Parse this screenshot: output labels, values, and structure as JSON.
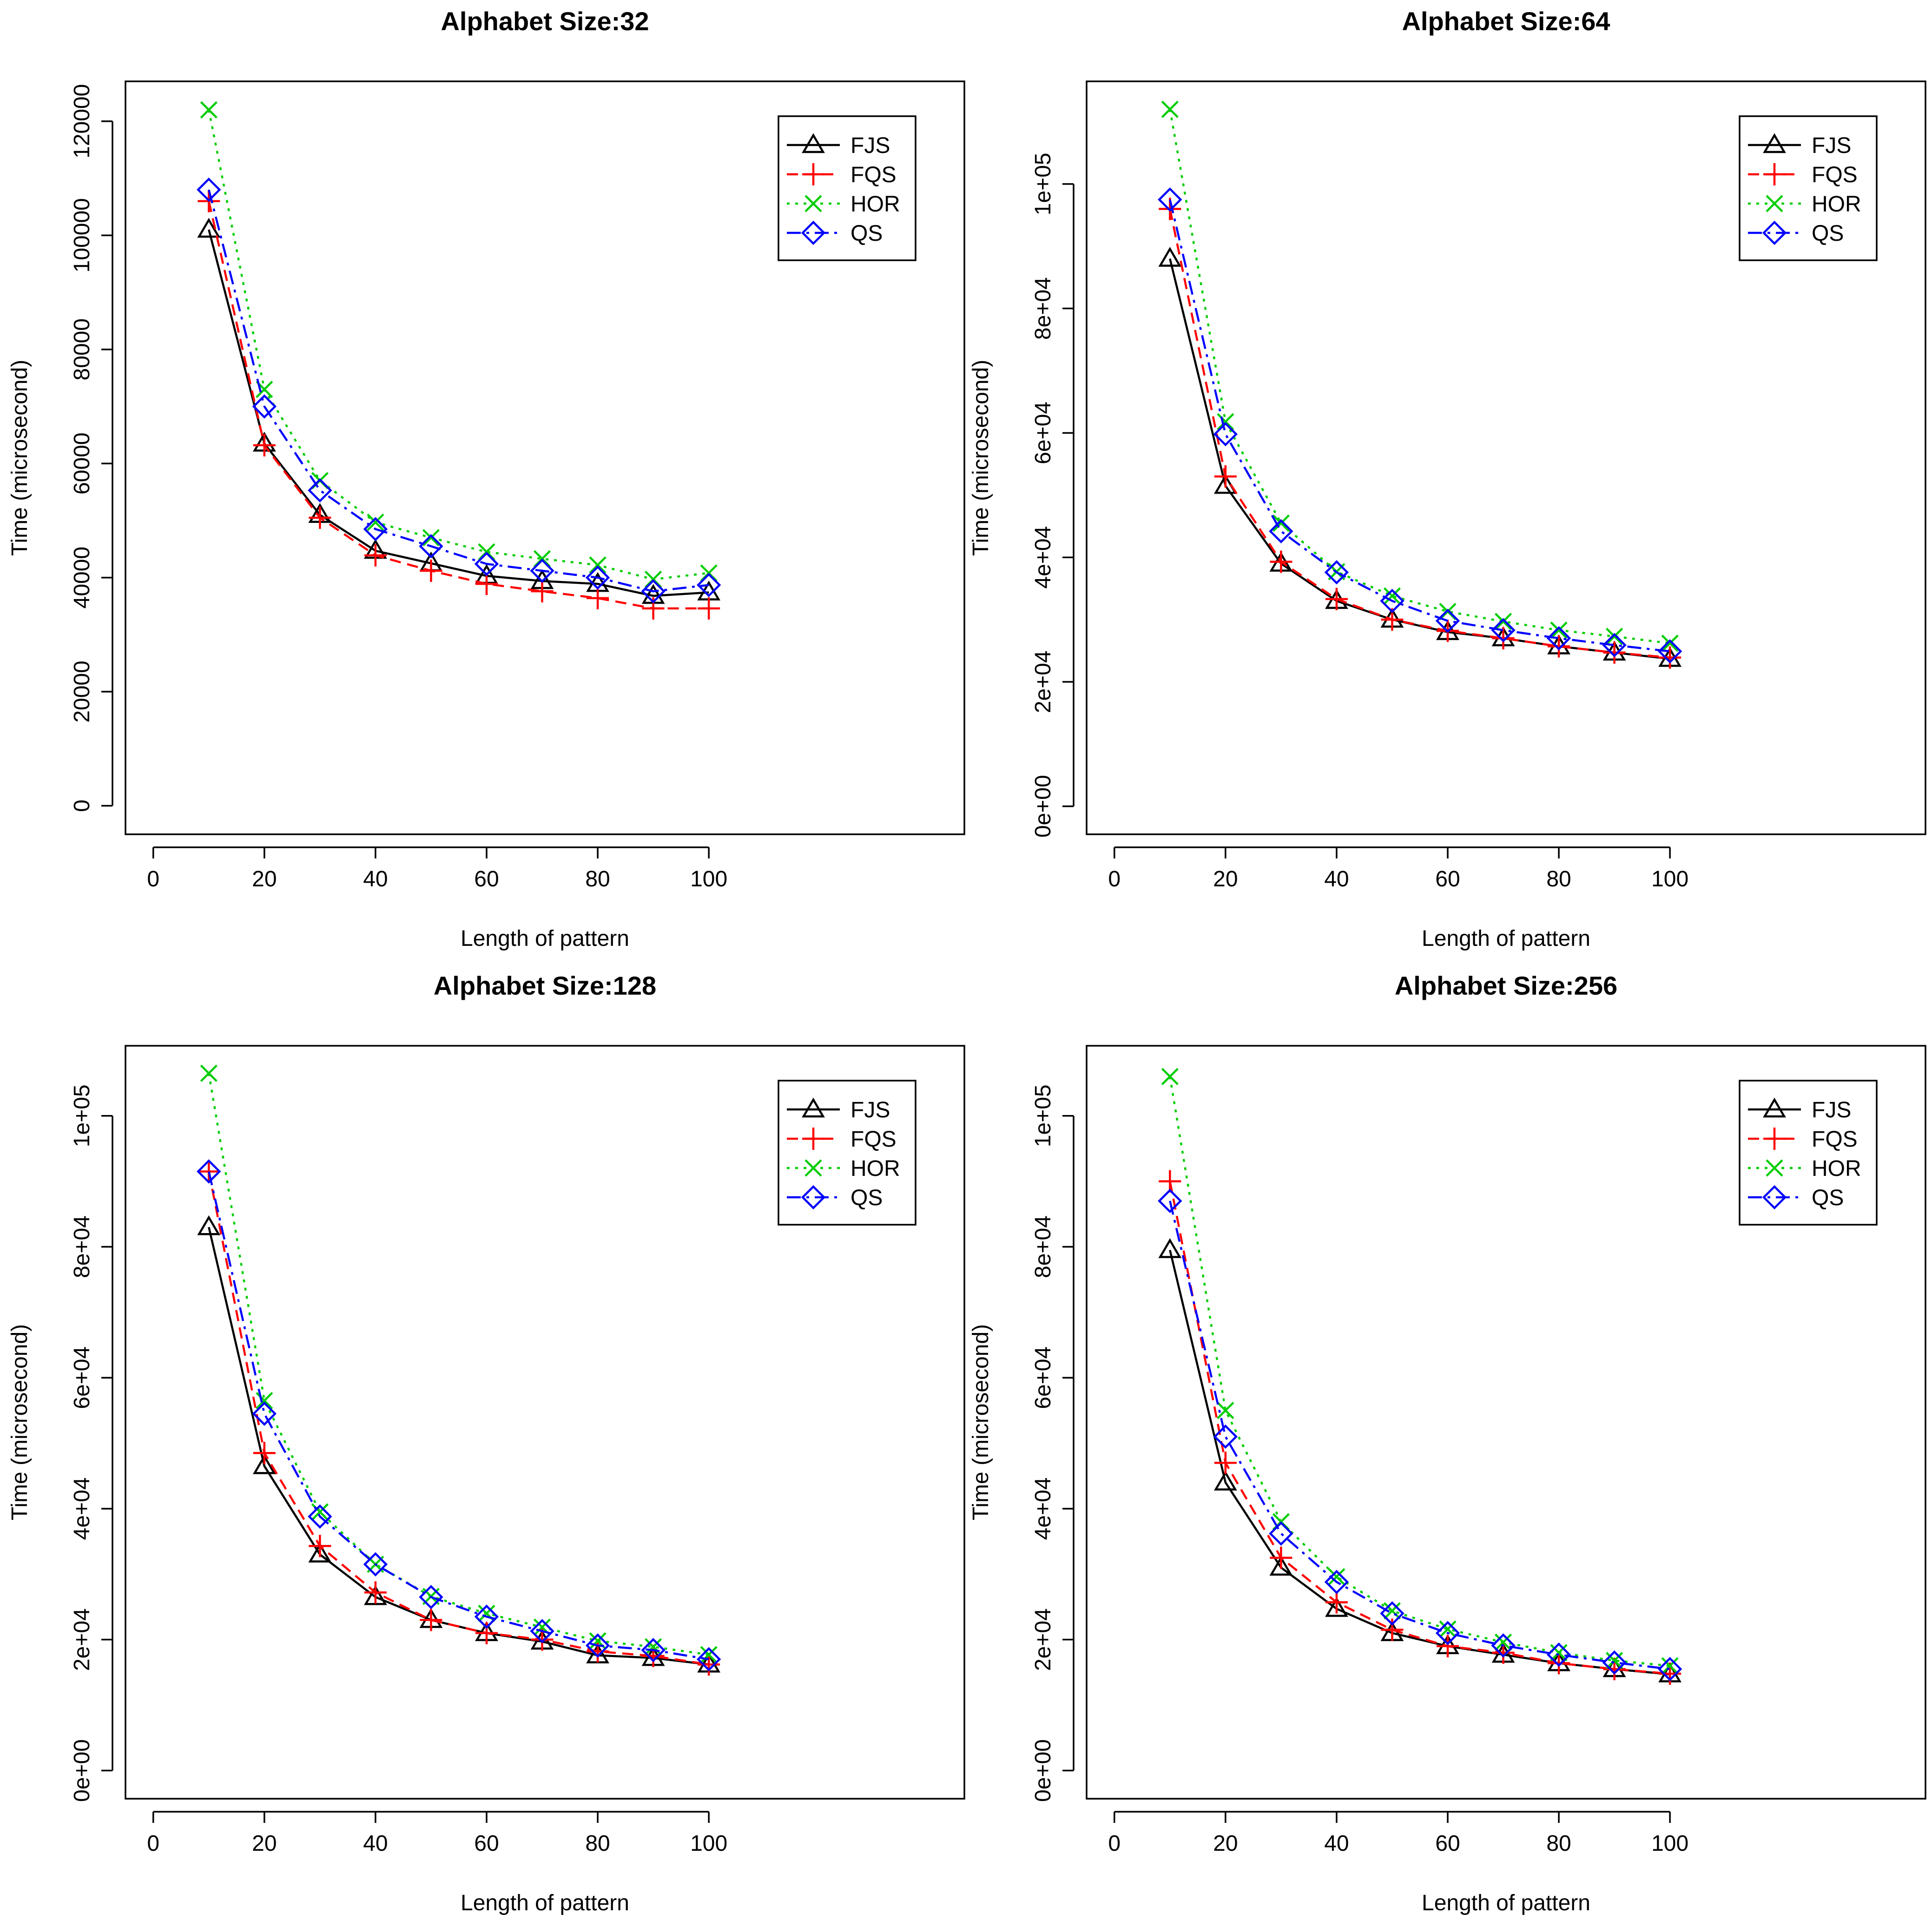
{
  "chart_data": [
    {
      "type": "line",
      "title": "Alphabet Size:32",
      "xlabel": "Length of pattern",
      "ylabel": "Time (microsecond)",
      "x": [
        10,
        20,
        30,
        40,
        50,
        60,
        70,
        80,
        90,
        100
      ],
      "xlim": [
        -5,
        146
      ],
      "xticks": [
        0,
        20,
        40,
        60,
        80,
        100
      ],
      "xtick_labels": [
        "0",
        "20",
        "40",
        "60",
        "80",
        "100"
      ],
      "ylim": [
        -5000,
        127000
      ],
      "yticks": [
        0,
        20000,
        40000,
        60000,
        80000,
        100000,
        120000
      ],
      "ytick_labels": [
        "0",
        "20000",
        "40000",
        "60000",
        "80000",
        "100000",
        "120000"
      ],
      "legend_position": "top-right",
      "series": [
        {
          "name": "FJS",
          "color": "#000000",
          "values": [
            101000,
            63500,
            51000,
            44700,
            42500,
            40300,
            39400,
            38900,
            36800,
            37400
          ]
        },
        {
          "name": "FQS",
          "color": "#FF0000",
          "values": [
            106000,
            63200,
            50500,
            43900,
            41200,
            38900,
            37600,
            36400,
            34600,
            34600
          ]
        },
        {
          "name": "HOR",
          "color": "#00CD00",
          "values": [
            122000,
            73000,
            57000,
            49700,
            47000,
            44500,
            43300,
            42200,
            39700,
            40800
          ]
        },
        {
          "name": "QS",
          "color": "#0000FF",
          "values": [
            108000,
            70000,
            55300,
            48500,
            45500,
            42400,
            41200,
            40000,
            37600,
            38700
          ]
        }
      ]
    },
    {
      "type": "line",
      "title": "Alphabet Size:64",
      "xlabel": "Length of pattern",
      "ylabel": "Time (microsecond)",
      "x": [
        10,
        20,
        30,
        40,
        50,
        60,
        70,
        80,
        90,
        100
      ],
      "xlim": [
        -5,
        146
      ],
      "xticks": [
        0,
        20,
        40,
        60,
        80,
        100
      ],
      "xtick_labels": [
        "0",
        "20",
        "40",
        "60",
        "80",
        "100"
      ],
      "ylim": [
        -4500,
        116500
      ],
      "yticks": [
        0,
        20000,
        40000,
        60000,
        80000,
        100000
      ],
      "ytick_labels": [
        "0e+00",
        "2e+04",
        "4e+04",
        "6e+04",
        "8e+04",
        "1e+05"
      ],
      "legend_position": "top-right",
      "series": [
        {
          "name": "FJS",
          "color": "#000000",
          "values": [
            88000,
            51500,
            39000,
            33000,
            30000,
            28000,
            27000,
            25700,
            24700,
            23700
          ]
        },
        {
          "name": "FQS",
          "color": "#FF0000",
          "values": [
            96000,
            53000,
            39300,
            33300,
            30000,
            28200,
            27000,
            25700,
            24700,
            23900
          ]
        },
        {
          "name": "HOR",
          "color": "#00CD00",
          "values": [
            112000,
            61800,
            45500,
            37700,
            33800,
            31300,
            29700,
            28300,
            27300,
            26200
          ]
        },
        {
          "name": "QS",
          "color": "#0000FF",
          "values": [
            97500,
            59800,
            44200,
            37600,
            33000,
            29800,
            28300,
            27000,
            25900,
            24900
          ]
        }
      ]
    },
    {
      "type": "line",
      "title": "Alphabet Size:128",
      "xlabel": "Length of pattern",
      "ylabel": "Time (microsecond)",
      "x": [
        10,
        20,
        30,
        40,
        50,
        60,
        70,
        80,
        90,
        100
      ],
      "xlim": [
        -5,
        146
      ],
      "xticks": [
        0,
        20,
        40,
        60,
        80,
        100
      ],
      "xtick_labels": [
        "0",
        "20",
        "40",
        "60",
        "80",
        "100"
      ],
      "ylim": [
        -4300,
        110700
      ],
      "yticks": [
        0,
        20000,
        40000,
        60000,
        80000,
        100000
      ],
      "ytick_labels": [
        "0e+00",
        "2e+04",
        "4e+04",
        "6e+04",
        "8e+04",
        "1e+05"
      ],
      "legend_position": "top-right",
      "series": [
        {
          "name": "FJS",
          "color": "#000000",
          "values": [
            83000,
            46500,
            33000,
            26500,
            23000,
            21000,
            19700,
            17600,
            17200,
            16200
          ]
        },
        {
          "name": "FQS",
          "color": "#FF0000",
          "values": [
            91500,
            48500,
            34300,
            27200,
            23000,
            21000,
            20000,
            18200,
            17500,
            16200
          ]
        },
        {
          "name": "HOR",
          "color": "#00CD00",
          "values": [
            106500,
            56500,
            39500,
            31500,
            26600,
            24000,
            21900,
            19800,
            18900,
            17700
          ]
        },
        {
          "name": "QS",
          "color": "#0000FF",
          "values": [
            91500,
            54500,
            38800,
            31500,
            26500,
            23500,
            21300,
            19100,
            18400,
            17000
          ]
        }
      ]
    },
    {
      "type": "line",
      "title": "Alphabet Size:256",
      "xlabel": "Length of pattern",
      "ylabel": "Time (microsecond)",
      "x": [
        10,
        20,
        30,
        40,
        50,
        60,
        70,
        80,
        90,
        100
      ],
      "xlim": [
        -5,
        146
      ],
      "xticks": [
        0,
        20,
        40,
        60,
        80,
        100
      ],
      "xtick_labels": [
        "0",
        "20",
        "40",
        "60",
        "80",
        "100"
      ],
      "ylim": [
        -4300,
        110700
      ],
      "yticks": [
        0,
        20000,
        40000,
        60000,
        80000,
        100000
      ],
      "ytick_labels": [
        "0e+00",
        "2e+04",
        "4e+04",
        "6e+04",
        "8e+04",
        "1e+05"
      ],
      "legend_position": "top-right",
      "series": [
        {
          "name": "FJS",
          "color": "#000000",
          "values": [
            79500,
            44000,
            31000,
            24700,
            21000,
            19000,
            17700,
            16400,
            15500,
            14700
          ]
        },
        {
          "name": "FQS",
          "color": "#FF0000",
          "values": [
            90000,
            47000,
            32500,
            25700,
            21500,
            19000,
            18000,
            16400,
            15500,
            14800
          ]
        },
        {
          "name": "HOR",
          "color": "#00CD00",
          "values": [
            106000,
            55000,
            38000,
            29600,
            24400,
            21600,
            19600,
            18000,
            16800,
            16000
          ]
        },
        {
          "name": "QS",
          "color": "#0000FF",
          "values": [
            87000,
            51000,
            36200,
            28800,
            24000,
            21000,
            19100,
            17700,
            16500,
            15500
          ]
        }
      ]
    }
  ]
}
